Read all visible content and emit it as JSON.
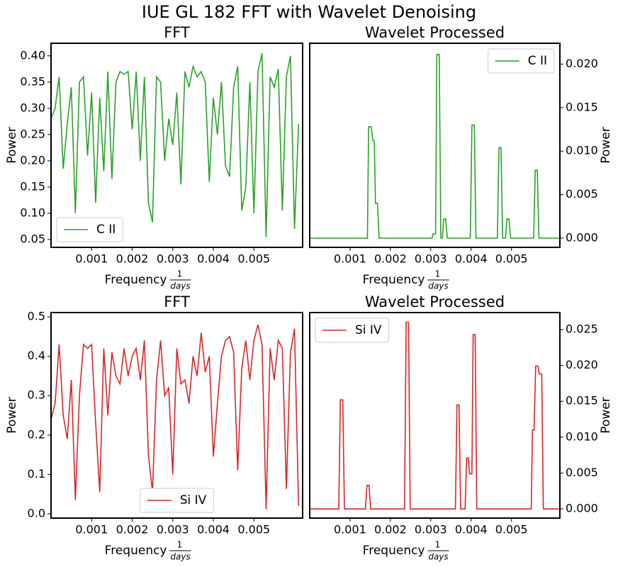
{
  "title": "IUE GL 182 FFT with Wavelet Denoising",
  "chart_data": [
    {
      "type": "line",
      "title": "FFT",
      "xlabel": "Frequency",
      "xlabel_fraction": {
        "numerator": "1",
        "denominator": "days"
      },
      "ylabel": "Power",
      "yaxis": "left",
      "legend": "lower left",
      "xlim": [
        0,
        0.0062
      ],
      "xticks": [
        0.001,
        0.002,
        0.003,
        0.004,
        0.005
      ],
      "ylim": [
        0.035,
        0.424
      ],
      "yticks": [
        0.05,
        {
          "value": 0.1,
          "label": "0.10"
        },
        0.15,
        {
          "value": 0.2,
          "label": "0.20"
        },
        0.25,
        {
          "value": 0.3,
          "label": "0.30"
        },
        0.35,
        {
          "value": 0.4,
          "label": "0.40"
        }
      ],
      "x": [
        0,
        0.0001,
        0.0002,
        0.0003,
        0.0004,
        0.0005,
        0.0006,
        0.0007,
        0.0008,
        0.0009,
        0.001,
        0.0011,
        0.0012,
        0.0013,
        0.0014,
        0.0015,
        0.0016,
        0.0017,
        0.0018,
        0.0019,
        0.002,
        0.0021,
        0.0022,
        0.0023,
        0.0024,
        0.0025,
        0.0026,
        0.0027,
        0.0028,
        0.0029,
        0.003,
        0.0031,
        0.0032,
        0.0033,
        0.0034,
        0.0035,
        0.0036,
        0.0037,
        0.0038,
        0.0039,
        0.004,
        0.0041,
        0.0042,
        0.0043,
        0.0044,
        0.0045,
        0.0046,
        0.0047,
        0.0048,
        0.0049,
        0.005,
        0.0051,
        0.0052,
        0.0053,
        0.0054,
        0.0055,
        0.0056,
        0.0057,
        0.0058,
        0.0059,
        0.006,
        0.0061
      ],
      "series": [
        {
          "name": "C II",
          "color": "#2ca02c",
          "values": [
            0.28,
            0.3,
            0.36,
            0.185,
            0.27,
            0.34,
            0.1,
            0.35,
            0.36,
            0.21,
            0.33,
            0.12,
            0.32,
            0.18,
            0.37,
            0.165,
            0.35,
            0.37,
            0.365,
            0.37,
            0.26,
            0.37,
            0.2,
            0.36,
            0.12,
            0.083,
            0.36,
            0.35,
            0.2,
            0.28,
            0.23,
            0.33,
            0.155,
            0.37,
            0.34,
            0.38,
            0.36,
            0.37,
            0.35,
            0.16,
            0.32,
            0.25,
            0.35,
            0.19,
            0.17,
            0.34,
            0.38,
            0.105,
            0.15,
            0.35,
            0.1,
            0.37,
            0.405,
            0.055,
            0.36,
            0.34,
            0.375,
            0.105,
            0.36,
            0.4,
            0.07,
            0.27
          ]
        }
      ]
    },
    {
      "type": "line",
      "title": "Wavelet Processed",
      "xlabel": "Frequency",
      "xlabel_fraction": {
        "numerator": "1",
        "denominator": "days"
      },
      "ylabel": "Power",
      "yaxis": "right",
      "legend": "upper right",
      "xlim": [
        0,
        0.0062
      ],
      "xticks": [
        0.001,
        0.002,
        0.003,
        0.004,
        0.005
      ],
      "ylim": [
        -0.00106,
        0.0224
      ],
      "yticks": [
        {
          "value": 0,
          "label": "0.000"
        },
        0.005,
        {
          "value": 0.01,
          "label": "0.010"
        },
        0.015,
        {
          "value": 0.02,
          "label": "0.020"
        }
      ],
      "x": [
        0,
        0.00143,
        0.00146,
        0.00152,
        0.00157,
        0.0016,
        0.00163,
        0.00168,
        0.00172,
        0.00303,
        0.00306,
        0.00312,
        0.00315,
        0.00321,
        0.00325,
        0.00329,
        0.00332,
        0.00337,
        0.00341,
        0.00398,
        0.00402,
        0.00408,
        0.00412,
        0.00465,
        0.00469,
        0.00474,
        0.00478,
        0.00485,
        0.00489,
        0.00494,
        0.00498,
        0.00555,
        0.00559,
        0.00564,
        0.00568,
        0.0062
      ],
      "series": [
        {
          "name": "C II",
          "color": "#2ca02c",
          "values": [
            0,
            0,
            0.0128,
            0.0128,
            0.0112,
            0.0112,
            0.004,
            0.004,
            0,
            0,
            0.0005,
            0.0005,
            0.0211,
            0.0211,
            0,
            0,
            0.0022,
            0.0022,
            0,
            0,
            0.013,
            0.013,
            0,
            0,
            0.0104,
            0.0104,
            0,
            0,
            0.0022,
            0.0022,
            0,
            0,
            0.0078,
            0.0078,
            0,
            0
          ]
        }
      ]
    },
    {
      "type": "line",
      "title": "FFT",
      "xlabel": "Frequency",
      "xlabel_fraction": {
        "numerator": "1",
        "denominator": "days"
      },
      "ylabel": "Power",
      "yaxis": "left",
      "legend": "lower center",
      "xlim": [
        0,
        0.0062
      ],
      "xticks": [
        0.001,
        0.002,
        0.003,
        0.004,
        0.005
      ],
      "ylim": [
        -0.011,
        0.511
      ],
      "yticks": [
        {
          "value": 0,
          "label": "0.0"
        },
        0.1,
        0.2,
        0.3,
        0.4,
        0.5
      ],
      "x": [
        0,
        0.0001,
        0.0002,
        0.0003,
        0.0004,
        0.0005,
        0.0006,
        0.0007,
        0.0008,
        0.0009,
        0.001,
        0.0011,
        0.0012,
        0.0013,
        0.0014,
        0.0015,
        0.0016,
        0.0017,
        0.0018,
        0.0019,
        0.002,
        0.0021,
        0.0022,
        0.0023,
        0.0024,
        0.0025,
        0.0026,
        0.0027,
        0.0028,
        0.0029,
        0.003,
        0.0031,
        0.0032,
        0.0033,
        0.0034,
        0.0035,
        0.0036,
        0.0037,
        0.0038,
        0.0039,
        0.004,
        0.0041,
        0.0042,
        0.0043,
        0.0044,
        0.0045,
        0.0046,
        0.0047,
        0.0048,
        0.0049,
        0.005,
        0.0051,
        0.0052,
        0.0053,
        0.0054,
        0.0055,
        0.0056,
        0.0057,
        0.0058,
        0.0059,
        0.006,
        0.0061
      ],
      "series": [
        {
          "name": "Si IV",
          "color": "#d62728",
          "values": [
            0.24,
            0.28,
            0.43,
            0.25,
            0.19,
            0.34,
            0.035,
            0.3,
            0.43,
            0.42,
            0.43,
            0.23,
            0.055,
            0.42,
            0.25,
            0.41,
            0.35,
            0.33,
            0.42,
            0.35,
            0.4,
            0.42,
            0.34,
            0.44,
            0.15,
            0.055,
            0.34,
            0.44,
            0.3,
            0.32,
            0.1,
            0.42,
            0.33,
            0.34,
            0.28,
            0.4,
            0.35,
            0.46,
            0.36,
            0.4,
            0.145,
            0.28,
            0.4,
            0.44,
            0.45,
            0.41,
            0.11,
            0.37,
            0.44,
            0.34,
            0.44,
            0.48,
            0.43,
            0.012,
            0.42,
            0.34,
            0.44,
            0.42,
            0.063,
            0.41,
            0.47,
            0.02
          ]
        }
      ]
    },
    {
      "type": "line",
      "title": "Wavelet Processed",
      "xlabel": "Frequency",
      "xlabel_fraction": {
        "numerator": "1",
        "denominator": "days"
      },
      "ylabel": "Power",
      "yaxis": "right",
      "legend": "upper left",
      "xlim": [
        0,
        0.0062
      ],
      "xticks": [
        0.001,
        0.002,
        0.003,
        0.004,
        0.005
      ],
      "ylim": [
        -0.00128,
        0.02737
      ],
      "yticks": [
        {
          "value": 0,
          "label": "0.000"
        },
        0.005,
        {
          "value": 0.01,
          "label": "0.010"
        },
        0.015,
        {
          "value": 0.02,
          "label": "0.020"
        },
        0.025
      ],
      "x": [
        0,
        0.00072,
        0.00076,
        0.00082,
        0.00086,
        0.00138,
        0.00142,
        0.00147,
        0.00151,
        0.00235,
        0.00239,
        0.00245,
        0.00249,
        0.00361,
        0.00365,
        0.0037,
        0.00374,
        0.00385,
        0.00389,
        0.00393,
        0.00396,
        0.00402,
        0.00405,
        0.0041,
        0.00414,
        0.00549,
        0.00552,
        0.00556,
        0.0056,
        0.00566,
        0.00569,
        0.00575,
        0.00579,
        0.0062
      ],
      "series": [
        {
          "name": "Si IV",
          "color": "#d62728",
          "values": [
            0,
            0,
            0.0152,
            0.0152,
            0,
            0,
            0.0033,
            0.0033,
            0,
            0,
            0.026,
            0.026,
            0,
            0,
            0.0145,
            0.0145,
            0,
            0,
            0.0071,
            0.0071,
            0.0049,
            0.0049,
            0.0243,
            0.0243,
            0,
            0,
            0.011,
            0.011,
            0.0199,
            0.0199,
            0.0188,
            0.0188,
            0,
            0
          ]
        }
      ]
    }
  ]
}
